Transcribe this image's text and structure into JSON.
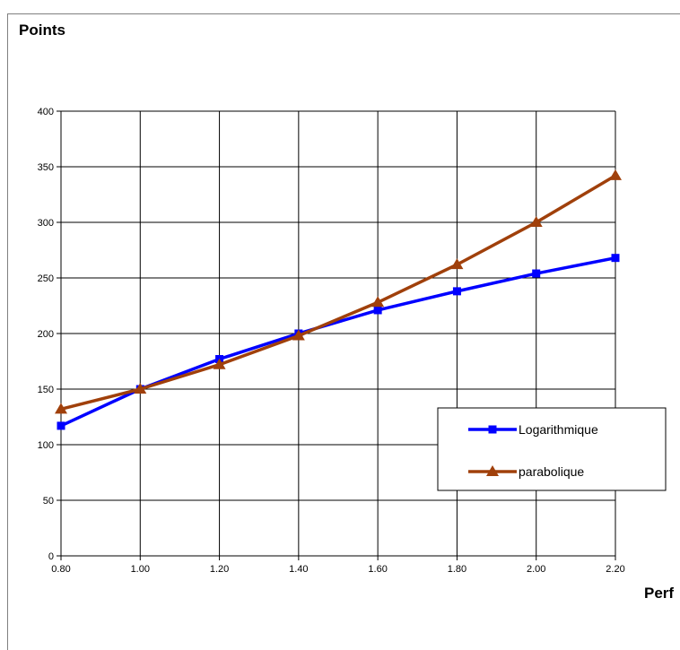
{
  "chart_data": {
    "type": "line",
    "xlabel": "Perf",
    "ylabel": "Points",
    "x": [
      0.8,
      1.0,
      1.2,
      1.4,
      1.6,
      1.8,
      2.0,
      2.2
    ],
    "x_tick_labels": [
      "0.80",
      "1.00",
      "1.20",
      "1.40",
      "1.60",
      "1.80",
      "2.00",
      "2.20"
    ],
    "y_tick_labels": [
      "0",
      "50",
      "100",
      "150",
      "200",
      "250",
      "300",
      "350",
      "400"
    ],
    "xlim": [
      0.8,
      2.2
    ],
    "ylim": [
      0,
      400
    ],
    "grid": true,
    "legend_position": "bottom-right",
    "series": [
      {
        "name": "Logarithmique",
        "color": "#0000ff",
        "marker": "square",
        "values": [
          117,
          150,
          177,
          200,
          221,
          238,
          254,
          268
        ]
      },
      {
        "name": "parabolique",
        "color": "#a0400b",
        "marker": "triangle",
        "values": [
          132,
          150,
          172,
          198,
          228,
          262,
          300,
          342
        ]
      }
    ]
  }
}
